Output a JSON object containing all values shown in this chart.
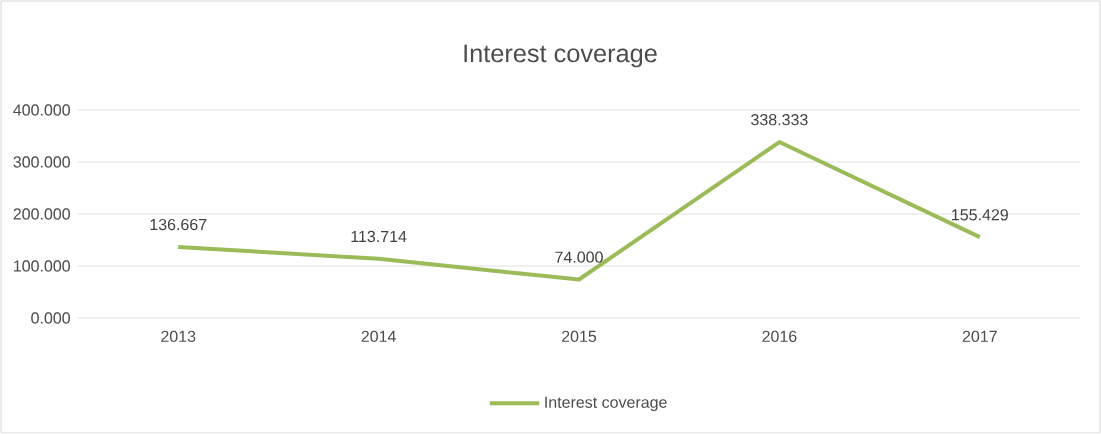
{
  "chart_data": {
    "type": "line",
    "title": "Interest coverage",
    "categories": [
      "2013",
      "2014",
      "2015",
      "2016",
      "2017"
    ],
    "series": [
      {
        "name": "Interest coverage",
        "color": "#9bbb59",
        "values": [
          136.667,
          113.714,
          74.0,
          338.333,
          155.429
        ],
        "value_labels": [
          "136.667",
          "113.714",
          "74.000",
          "338.333",
          "155.429"
        ]
      }
    ],
    "ylim": [
      0,
      400
    ],
    "yticks": [
      {
        "value": 0,
        "label": "0.000"
      },
      {
        "value": 100,
        "label": "100.000"
      },
      {
        "value": 200,
        "label": "200.000"
      },
      {
        "value": 300,
        "label": "300.000"
      },
      {
        "value": 400,
        "label": "400.000"
      }
    ],
    "grid": "y",
    "legend": "bottom",
    "marker": "none",
    "line_style": "solid"
  }
}
